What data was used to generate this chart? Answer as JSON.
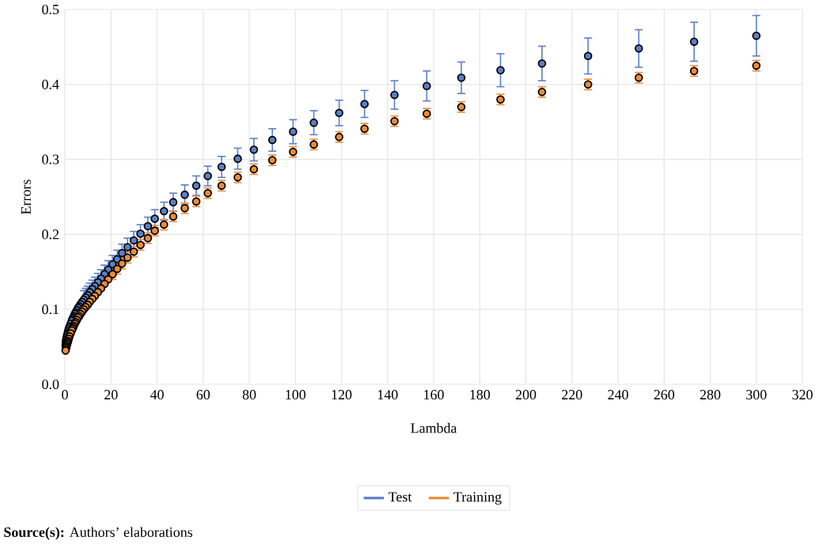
{
  "chart_data": {
    "type": "scatter",
    "xlabel": "Lambda",
    "ylabel": "Errors",
    "xlim": [
      0,
      320
    ],
    "ylim": [
      0,
      0.5
    ],
    "xticks": [
      0,
      20,
      40,
      60,
      80,
      100,
      120,
      140,
      160,
      180,
      200,
      220,
      240,
      260,
      280,
      300,
      320
    ],
    "yticks": [
      {
        "value": 0,
        "label": "0.0"
      },
      0.1,
      0.2,
      0.3,
      0.4,
      0.5
    ],
    "grid": true,
    "legend": "bottom",
    "marker": "circle",
    "x": [
      300,
      273,
      249,
      227,
      207,
      189,
      172,
      157,
      143,
      130,
      119,
      108,
      99,
      90,
      82,
      75,
      68,
      62,
      57,
      52,
      47,
      43,
      39,
      36,
      32.8,
      29.9,
      27.2,
      24.8,
      22.7,
      20.7,
      18.8,
      17.2,
      15.7,
      14.3,
      13,
      11.9,
      10.8,
      9.9,
      9,
      8.2,
      7.5,
      6.8,
      6.2,
      5.7,
      5.2,
      4.7,
      4.3,
      3.9,
      3.6,
      3.3,
      3,
      2.5,
      2,
      1.7,
      1.4,
      1.2,
      1,
      0.8,
      0.6,
      0.5,
      0.4,
      0.3
    ],
    "series": [
      {
        "name": "Test",
        "color": "#5b7fc7",
        "values": [
          0.465,
          0.457,
          0.448,
          0.438,
          0.428,
          0.419,
          0.409,
          0.398,
          0.386,
          0.374,
          0.362,
          0.349,
          0.337,
          0.326,
          0.313,
          0.301,
          0.29,
          0.278,
          0.265,
          0.253,
          0.243,
          0.231,
          0.221,
          0.211,
          0.201,
          0.192,
          0.183,
          0.175,
          0.167,
          0.16,
          0.153,
          0.147,
          0.141,
          0.136,
          0.131,
          0.127,
          0.123,
          0.119,
          0.116,
          0.113,
          0.11,
          0.107,
          0.104,
          0.102,
          0.099,
          0.096,
          0.094,
          0.091,
          0.089,
          0.087,
          0.085,
          0.081,
          0.077,
          0.074,
          0.071,
          0.068,
          0.066,
          0.063,
          0.06,
          0.058,
          0.055,
          0.052
        ],
        "errors": [
          0.027,
          0.026,
          0.025,
          0.024,
          0.023,
          0.022,
          0.021,
          0.02,
          0.019,
          0.018,
          0.017,
          0.016,
          0.016,
          0.015,
          0.015,
          0.014,
          0.014,
          0.013,
          0.013,
          0.013,
          0.012,
          0.012,
          0.012,
          0.012,
          0.012,
          0.012,
          0.012,
          0.012,
          0.012,
          0.012,
          0.012,
          0.012,
          0.012,
          0.012,
          0.012,
          0.012,
          0.012,
          0.012,
          0.012,
          0.012,
          null,
          null,
          null,
          null,
          null,
          null,
          null,
          null,
          null,
          null,
          null,
          null,
          null,
          null,
          null,
          null,
          null,
          null,
          null,
          null,
          null,
          null
        ]
      },
      {
        "name": "Training",
        "color": "#ed8b3a",
        "values": [
          0.425,
          0.418,
          0.409,
          0.4,
          0.39,
          0.38,
          0.37,
          0.361,
          0.351,
          0.341,
          0.33,
          0.32,
          0.31,
          0.299,
          0.287,
          0.276,
          0.265,
          0.255,
          0.244,
          0.235,
          0.224,
          0.213,
          0.205,
          0.195,
          0.186,
          0.177,
          0.169,
          0.161,
          0.154,
          0.147,
          0.14,
          0.134,
          0.128,
          0.123,
          0.118,
          0.114,
          0.11,
          0.106,
          0.103,
          0.1,
          0.097,
          0.094,
          0.091,
          0.089,
          0.086,
          0.083,
          0.081,
          0.078,
          0.076,
          0.074,
          0.072,
          0.068,
          0.064,
          0.061,
          0.058,
          0.056,
          0.054,
          0.052,
          0.05,
          0.049,
          0.047,
          0.045
        ],
        "errors": [
          0.007,
          0.007,
          0.007,
          0.007,
          0.007,
          0.007,
          0.007,
          0.007,
          0.007,
          0.007,
          0.007,
          0.007,
          0.007,
          0.007,
          0.007,
          0.007,
          0.007,
          0.007,
          0.007,
          0.007,
          0.007,
          0.007,
          0.007,
          0.007,
          0.007,
          0.007,
          0.007,
          0.007,
          0.007,
          0.007,
          null,
          null,
          null,
          null,
          null,
          null,
          null,
          null,
          null,
          null,
          null,
          null,
          null,
          null,
          null,
          null,
          null,
          null,
          null,
          null,
          null,
          null,
          null,
          null,
          null,
          null,
          null,
          null,
          null,
          null,
          null,
          null
        ]
      }
    ],
    "annotations": [
      "**Source(s):** Authors’ elaborations"
    ]
  }
}
